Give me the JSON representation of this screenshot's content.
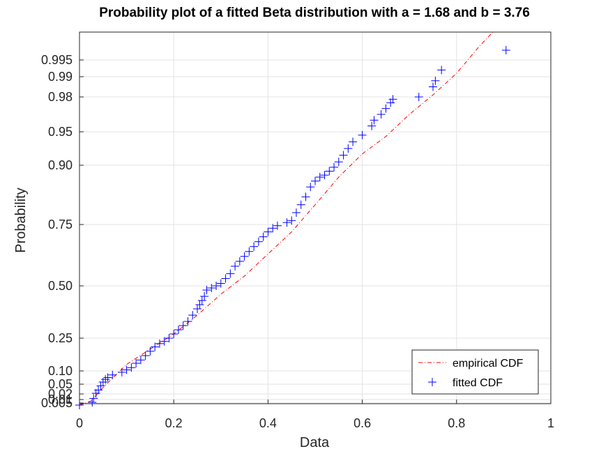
{
  "chart_data": {
    "type": "scatter",
    "title": "Probability plot of a fitted Beta distribution with a = 1.68 and b = 3.76",
    "xlabel": "Data",
    "ylabel": "Probability",
    "xlim": [
      0,
      1
    ],
    "x_ticks": [
      "0",
      "0.2",
      "0.4",
      "0.6",
      "0.8",
      "1"
    ],
    "x_tick_values": [
      0,
      0.2,
      0.4,
      0.6,
      0.8,
      1
    ],
    "y_scale": "beta-probability",
    "y_ticks": [
      "0.005",
      "0.01",
      "0.02",
      "0.05",
      "0.10",
      "0.25",
      "0.50",
      "0.75",
      "0.90",
      "0.95",
      "0.98",
      "0.99",
      "0.995"
    ],
    "y_tick_values": [
      0.005,
      0.01,
      0.02,
      0.05,
      0.1,
      0.25,
      0.5,
      0.75,
      0.9,
      0.95,
      0.98,
      0.99,
      0.995
    ],
    "grid": true,
    "legend": {
      "placement": "bottom-right",
      "entries": [
        "empirical CDF",
        "fitted CDF"
      ]
    },
    "colors": {
      "empirical": "#ff0000",
      "fitted": "#0000ff",
      "grid": "#e3e3e3",
      "axis": "#262626"
    },
    "series": [
      {
        "name": "empirical CDF",
        "style": "dash-dot line",
        "x": [
          0.0,
          0.025,
          0.05,
          0.1,
          0.15,
          0.2,
          0.25,
          0.3,
          0.35,
          0.4,
          0.45,
          0.5,
          0.55,
          0.6,
          0.65,
          0.7,
          0.75,
          0.8,
          0.85,
          0.88
        ],
        "y": [
          0.003,
          0.008,
          0.04,
          0.13,
          0.2,
          0.27,
          0.36,
          0.46,
          0.54,
          0.63,
          0.72,
          0.8,
          0.87,
          0.917,
          0.943,
          0.965,
          0.981,
          0.991,
          0.9965,
          0.998
        ]
      },
      {
        "name": "fitted CDF",
        "style": "plus markers",
        "x": [
          0.0,
          0.027,
          0.03,
          0.035,
          0.04,
          0.045,
          0.05,
          0.055,
          0.06,
          0.07,
          0.09,
          0.1,
          0.11,
          0.12,
          0.13,
          0.14,
          0.15,
          0.16,
          0.17,
          0.18,
          0.19,
          0.2,
          0.21,
          0.22,
          0.23,
          0.24,
          0.25,
          0.255,
          0.26,
          0.265,
          0.27,
          0.28,
          0.29,
          0.3,
          0.31,
          0.32,
          0.33,
          0.34,
          0.35,
          0.36,
          0.37,
          0.38,
          0.39,
          0.4,
          0.41,
          0.42,
          0.44,
          0.45,
          0.46,
          0.47,
          0.48,
          0.49,
          0.5,
          0.51,
          0.52,
          0.53,
          0.54,
          0.55,
          0.56,
          0.57,
          0.58,
          0.6,
          0.62,
          0.625,
          0.64,
          0.65,
          0.66,
          0.665,
          0.72,
          0.75,
          0.755,
          0.768,
          0.905
        ],
        "y": [
          0.003,
          0.006,
          0.012,
          0.022,
          0.032,
          0.045,
          0.058,
          0.068,
          0.075,
          0.085,
          0.095,
          0.105,
          0.115,
          0.135,
          0.15,
          0.17,
          0.19,
          0.21,
          0.225,
          0.235,
          0.25,
          0.27,
          0.29,
          0.31,
          0.33,
          0.36,
          0.39,
          0.41,
          0.43,
          0.45,
          0.48,
          0.49,
          0.5,
          0.51,
          0.53,
          0.55,
          0.58,
          0.6,
          0.62,
          0.64,
          0.66,
          0.68,
          0.7,
          0.72,
          0.735,
          0.745,
          0.755,
          0.76,
          0.78,
          0.8,
          0.82,
          0.845,
          0.86,
          0.87,
          0.875,
          0.885,
          0.895,
          0.905,
          0.915,
          0.925,
          0.935,
          0.945,
          0.955,
          0.96,
          0.965,
          0.97,
          0.975,
          0.978,
          0.98,
          0.985,
          0.988,
          0.992,
          0.996
        ]
      }
    ]
  }
}
